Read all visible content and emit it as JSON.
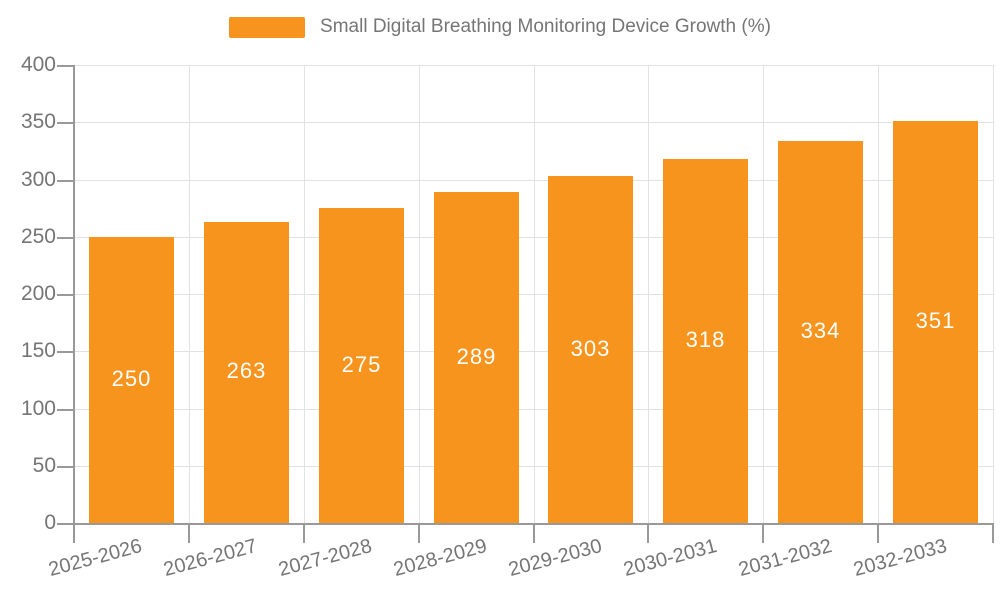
{
  "legend": {
    "label": "Small Digital Breathing Monitoring Device Growth (%)"
  },
  "chart_data": {
    "type": "bar",
    "title": "Small Digital Breathing Monitoring Device Growth (%)",
    "categories": [
      "2025-2026",
      "2026-2027",
      "2027-2028",
      "2028-2029",
      "2029-2030",
      "2030-2031",
      "2031-2032",
      "2032-2033"
    ],
    "values": [
      250,
      263,
      275,
      289,
      303,
      318,
      334,
      351
    ],
    "xlabel": "",
    "ylabel": "",
    "ylim": [
      0,
      400
    ],
    "ytick_step": 50,
    "ytick_labels": [
      "0",
      "50",
      "100",
      "150",
      "200",
      "250",
      "300",
      "350",
      "400"
    ],
    "grid": true,
    "legend_position": "top-center",
    "bar_label_position": "inside-center",
    "x_tick_label_rotation_deg": -15,
    "colors": {
      "bar": "#f7941e",
      "bar_label": "#ffffff",
      "axis": "#999999",
      "grid": "#e2e2e2",
      "tick_text": "#757575",
      "legend_text": "#757575",
      "background": "#ffffff"
    }
  }
}
